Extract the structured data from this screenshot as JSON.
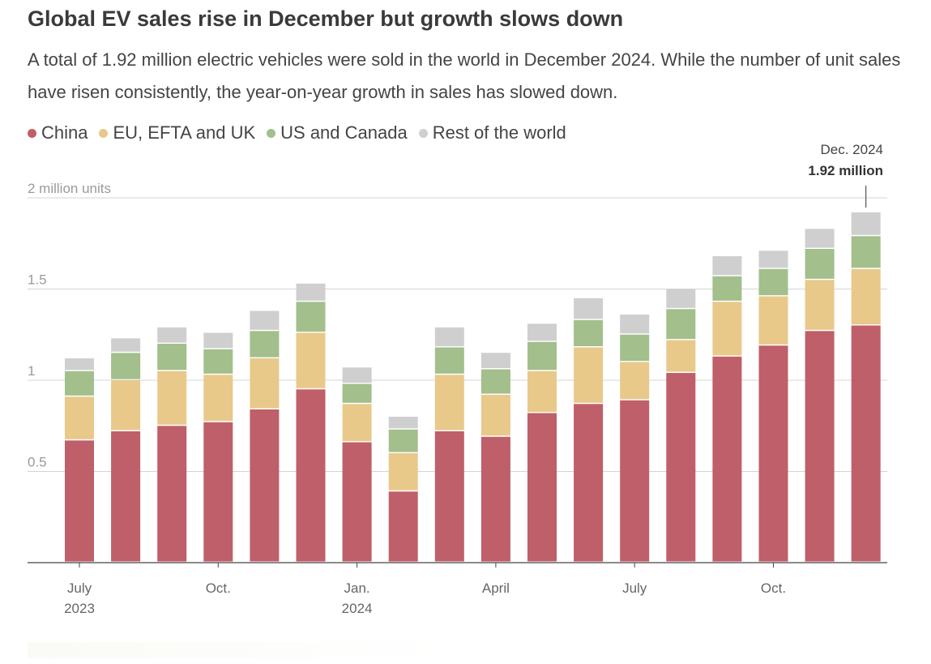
{
  "header": {
    "title": "Global EV sales rise in December but growth slows down",
    "subtitle": "A total of 1.92 million electric vehicles were sold in the world in December 2024. While the number of unit sales have risen consistently, the year-on-year growth in sales has slowed down."
  },
  "legend": [
    {
      "label": "China",
      "color": "#bf5f69"
    },
    {
      "label": "EU, EFTA and UK",
      "color": "#e8c98a"
    },
    {
      "label": "US and Canada",
      "color": "#a2bf8c"
    },
    {
      "label": "Rest of the world",
      "color": "#cfcfcf"
    }
  ],
  "annotation": {
    "line1": "Dec. 2024",
    "line2": "1.92 million"
  },
  "chart_data": {
    "type": "bar",
    "stacked": true,
    "title": "Global EV sales rise in December but growth slows down",
    "ylabel": "2 million units",
    "ylim": [
      0,
      2
    ],
    "yticks": [
      {
        "value": 0.5,
        "label": "0.5"
      },
      {
        "value": 1,
        "label": "1"
      },
      {
        "value": 1.5,
        "label": "1.5"
      },
      {
        "value": 2,
        "label": "2 million units"
      }
    ],
    "categories": [
      "Jul 2023",
      "Aug 2023",
      "Sep 2023",
      "Oct 2023",
      "Nov 2023",
      "Dec 2023",
      "Jan 2024",
      "Feb 2024",
      "Mar 2024",
      "Apr 2024",
      "May 2024",
      "Jun 2024",
      "Jul 2024",
      "Aug 2024",
      "Sep 2024",
      "Oct 2024",
      "Nov 2024",
      "Dec 2024"
    ],
    "xticks": [
      {
        "index": 0,
        "line1": "July",
        "line2": "2023"
      },
      {
        "index": 3,
        "line1": "Oct.",
        "line2": ""
      },
      {
        "index": 6,
        "line1": "Jan.",
        "line2": "2024"
      },
      {
        "index": 9,
        "line1": "April",
        "line2": ""
      },
      {
        "index": 12,
        "line1": "July",
        "line2": ""
      },
      {
        "index": 15,
        "line1": "Oct.",
        "line2": ""
      }
    ],
    "series": [
      {
        "name": "China",
        "color": "#bf5f69",
        "values": [
          0.67,
          0.72,
          0.75,
          0.77,
          0.84,
          0.95,
          0.66,
          0.39,
          0.72,
          0.69,
          0.82,
          0.87,
          0.89,
          1.04,
          1.13,
          1.19,
          1.27,
          1.3
        ]
      },
      {
        "name": "EU, EFTA and UK",
        "color": "#e8c98a",
        "values": [
          0.24,
          0.28,
          0.3,
          0.26,
          0.28,
          0.31,
          0.21,
          0.21,
          0.31,
          0.23,
          0.23,
          0.31,
          0.21,
          0.18,
          0.3,
          0.27,
          0.28,
          0.31
        ]
      },
      {
        "name": "US and Canada",
        "color": "#a2bf8c",
        "values": [
          0.14,
          0.15,
          0.15,
          0.14,
          0.15,
          0.17,
          0.11,
          0.13,
          0.15,
          0.14,
          0.16,
          0.15,
          0.15,
          0.17,
          0.14,
          0.15,
          0.17,
          0.18
        ]
      },
      {
        "name": "Rest of the world",
        "color": "#cfcfcf",
        "values": [
          0.07,
          0.08,
          0.09,
          0.09,
          0.11,
          0.1,
          0.09,
          0.07,
          0.11,
          0.09,
          0.1,
          0.12,
          0.11,
          0.11,
          0.11,
          0.1,
          0.11,
          0.13
        ]
      }
    ]
  }
}
